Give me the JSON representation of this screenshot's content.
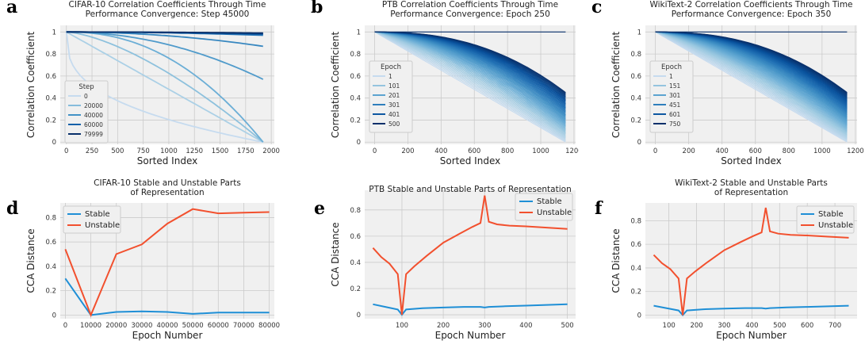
{
  "chart_data": [
    {
      "panel_label": "a",
      "type": "line",
      "title_lines": [
        "CIFAR-10 Correlation Coefficients Through Time",
        "Performance Convergence: Step 45000"
      ],
      "xlabel": "Sorted Index",
      "ylabel": "Correlation Coefficient",
      "xlim": [
        -60,
        2030
      ],
      "ylim": [
        -0.02,
        1.06
      ],
      "xticks": [
        0,
        250,
        500,
        750,
        1000,
        1250,
        1500,
        1750,
        2000
      ],
      "yticks": [
        0.0,
        0.2,
        0.4,
        0.6,
        0.8,
        1.0
      ],
      "legend": {
        "title": "Step",
        "placement": "center-left",
        "entries": [
          "0",
          "20000",
          "40000",
          "60000",
          "79999"
        ]
      },
      "curve_family": {
        "n": 1920,
        "start": 1.0,
        "end_values": [
          0.0,
          0.0,
          0.0,
          0.0,
          0.57,
          0.87,
          0.97,
          0.98,
          0.985,
          0.99
        ],
        "shapes": [
          0.35,
          1.0,
          1.5,
          2.2,
          2.0,
          2.0,
          2.0,
          2.0,
          2.0,
          2.0
        ]
      },
      "colors": [
        "#c6dbef",
        "#9ecae1",
        "#6baed6",
        "#4292c6",
        "#2171b5",
        "#08519c",
        "#08306b"
      ],
      "grid": true
    },
    {
      "panel_label": "b",
      "type": "line",
      "title_lines": [
        "PTB Correlation Coefficients Through Time",
        "Performance Convergence: Epoch 250"
      ],
      "xlabel": "Sorted Index",
      "ylabel": "Correlation Coefficient",
      "xlim": [
        -60,
        1210
      ],
      "ylim": [
        -0.02,
        1.06
      ],
      "xticks": [
        0,
        200,
        400,
        600,
        800,
        1000,
        1200
      ],
      "yticks": [
        0.0,
        0.2,
        0.4,
        0.6,
        0.8,
        1.0
      ],
      "legend": {
        "title": "Epoch",
        "placement": "center-left",
        "entries": [
          "1",
          "101",
          "201",
          "301",
          "401",
          "500"
        ]
      },
      "curve_family": {
        "n": 1150,
        "count": 50,
        "end_min": 0.0,
        "end_max": 0.45,
        "flat_top": 1.0
      },
      "colors": [
        "#c6dbef",
        "#9ecae1",
        "#6baed6",
        "#4292c6",
        "#2171b5",
        "#08519c",
        "#08306b"
      ],
      "grid": true
    },
    {
      "panel_label": "c",
      "type": "line",
      "title_lines": [
        "WikiText-2 Correlation Coefficients Through Time",
        "Performance Convergence: Epoch 350"
      ],
      "xlabel": "Sorted Index",
      "ylabel": "Correlation Coefficient",
      "xlim": [
        -60,
        1210
      ],
      "ylim": [
        -0.02,
        1.06
      ],
      "xticks": [
        0,
        200,
        400,
        600,
        800,
        1000,
        1200
      ],
      "yticks": [
        0.0,
        0.2,
        0.4,
        0.6,
        0.8,
        1.0
      ],
      "legend": {
        "title": "Epoch",
        "placement": "center-left",
        "entries": [
          "1",
          "151",
          "301",
          "451",
          "601",
          "750"
        ]
      },
      "curve_family": {
        "n": 1150,
        "count": 60,
        "end_min": 0.0,
        "end_max": 0.45,
        "flat_top": 1.0
      },
      "colors": [
        "#c6dbef",
        "#9ecae1",
        "#6baed6",
        "#4292c6",
        "#2171b5",
        "#08519c",
        "#08306b"
      ],
      "grid": true
    },
    {
      "panel_label": "d",
      "type": "line",
      "title_lines": [
        "CIFAR-10 Stable and Unstable Parts",
        "of Representation"
      ],
      "xlabel": "Epoch Number",
      "ylabel": "CCA Distance",
      "xlim": [
        -2000,
        82000
      ],
      "ylim": [
        -0.03,
        0.92
      ],
      "xticks": [
        0,
        10000,
        20000,
        30000,
        40000,
        50000,
        60000,
        70000,
        80000
      ],
      "yticks": [
        0.0,
        0.2,
        0.4,
        0.6,
        0.8
      ],
      "legend": {
        "placement": "upper-left",
        "entries": [
          "Stable",
          "Unstable"
        ]
      },
      "series": [
        {
          "name": "Stable",
          "color": "#1f8fd6",
          "x": [
            0,
            10000,
            20000,
            30000,
            40000,
            50000,
            60000,
            70000,
            80000
          ],
          "y": [
            0.3,
            0.0,
            0.025,
            0.03,
            0.025,
            0.01,
            0.02,
            0.02,
            0.02
          ]
        },
        {
          "name": "Unstable",
          "color": "#f2502e",
          "x": [
            0,
            10000,
            20000,
            30000,
            40000,
            50000,
            60000,
            70000,
            80000
          ],
          "y": [
            0.54,
            0.0,
            0.5,
            0.58,
            0.75,
            0.87,
            0.835,
            0.84,
            0.845
          ]
        }
      ],
      "grid": true
    },
    {
      "panel_label": "e",
      "type": "line",
      "title_lines": [
        "PTB Stable and Unstable Parts of Representation"
      ],
      "xlabel": "Epoch Number",
      "ylabel": "CCA Distance",
      "xlim": [
        10,
        520
      ],
      "ylim": [
        -0.03,
        0.95
      ],
      "xticks": [
        100,
        200,
        300,
        400,
        500
      ],
      "yticks": [
        0.0,
        0.2,
        0.4,
        0.6,
        0.8
      ],
      "legend": {
        "placement": "upper-right",
        "entries": [
          "Stable",
          "Unstable"
        ]
      },
      "series": [
        {
          "name": "Stable",
          "color": "#1f8fd6",
          "x": [
            30,
            60,
            90,
            100,
            110,
            150,
            200,
            250,
            290,
            300,
            310,
            350,
            400,
            450,
            500
          ],
          "y": [
            0.08,
            0.06,
            0.04,
            0.0,
            0.04,
            0.05,
            0.055,
            0.06,
            0.06,
            0.055,
            0.06,
            0.065,
            0.07,
            0.075,
            0.08
          ]
        },
        {
          "name": "Unstable",
          "color": "#f2502e",
          "x": [
            30,
            50,
            70,
            90,
            100,
            110,
            130,
            160,
            200,
            240,
            270,
            290,
            300,
            310,
            330,
            360,
            400,
            450,
            500
          ],
          "y": [
            0.51,
            0.44,
            0.39,
            0.31,
            0.0,
            0.31,
            0.37,
            0.45,
            0.55,
            0.62,
            0.67,
            0.7,
            0.91,
            0.71,
            0.69,
            0.68,
            0.675,
            0.665,
            0.655
          ]
        }
      ],
      "grid": true
    },
    {
      "panel_label": "f",
      "type": "line",
      "title_lines": [
        "WikiText-2 Stable and Unstable Parts",
        "of Representation"
      ],
      "xlabel": "Epoch Number",
      "ylabel": "CCA Distance",
      "xlim": [
        15,
        780
      ],
      "ylim": [
        -0.03,
        0.95
      ],
      "xticks": [
        100,
        200,
        300,
        400,
        500,
        600,
        700
      ],
      "yticks": [
        0.0,
        0.2,
        0.4,
        0.6,
        0.8
      ],
      "legend": {
        "placement": "upper-right",
        "entries": [
          "Stable",
          "Unstable"
        ]
      },
      "series": [
        {
          "name": "Stable",
          "color": "#1f8fd6",
          "x": [
            45,
            90,
            135,
            150,
            165,
            225,
            300,
            375,
            435,
            450,
            465,
            525,
            600,
            675,
            750
          ],
          "y": [
            0.08,
            0.06,
            0.04,
            0.0,
            0.04,
            0.05,
            0.055,
            0.06,
            0.06,
            0.055,
            0.06,
            0.065,
            0.07,
            0.075,
            0.08
          ]
        },
        {
          "name": "Unstable",
          "color": "#f2502e",
          "x": [
            45,
            75,
            105,
            135,
            150,
            165,
            195,
            240,
            300,
            360,
            405,
            435,
            450,
            465,
            495,
            540,
            600,
            675,
            750
          ],
          "y": [
            0.51,
            0.44,
            0.39,
            0.31,
            0.0,
            0.31,
            0.37,
            0.45,
            0.55,
            0.62,
            0.67,
            0.7,
            0.91,
            0.71,
            0.69,
            0.68,
            0.675,
            0.665,
            0.655
          ]
        }
      ],
      "grid": true
    }
  ]
}
